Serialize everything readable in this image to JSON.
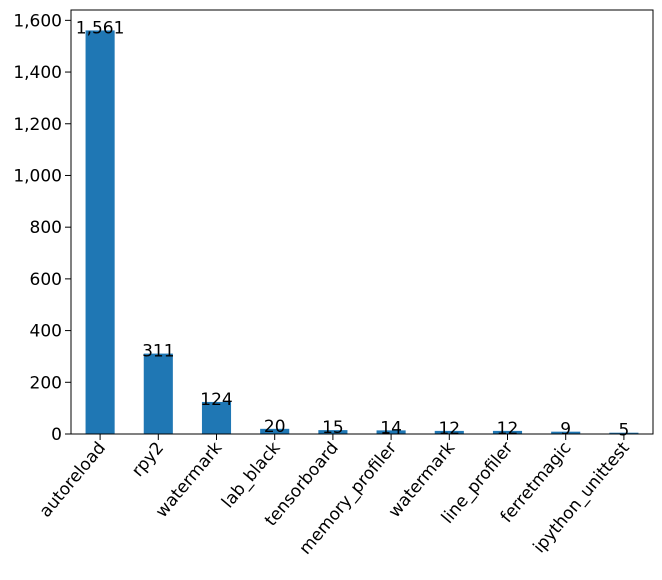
{
  "chart_data": {
    "type": "bar",
    "title": "",
    "xlabel": "",
    "ylabel": "",
    "categories": [
      "autoreload",
      "rpy2",
      "watermark",
      "lab_black",
      "tensorboard",
      "memory_profiler",
      "watermark",
      "line_profiler",
      "ferretmagic",
      "ipython_unittest"
    ],
    "values": [
      1561,
      311,
      124,
      20,
      15,
      14,
      12,
      12,
      9,
      5
    ],
    "value_labels": [
      "1,561",
      "311",
      "124",
      "20",
      "15",
      "14",
      "12",
      "12",
      "9",
      "5"
    ],
    "ylim": [
      0,
      1640
    ],
    "yticks": [
      0,
      200,
      400,
      600,
      800,
      1000,
      1200,
      1400,
      1600
    ],
    "ytick_labels": [
      "0",
      "200",
      "400",
      "600",
      "800",
      "1,000",
      "1,200",
      "1,400",
      "1,600"
    ],
    "bar_color": "#1f77b4",
    "grid": false,
    "legend": "none"
  }
}
